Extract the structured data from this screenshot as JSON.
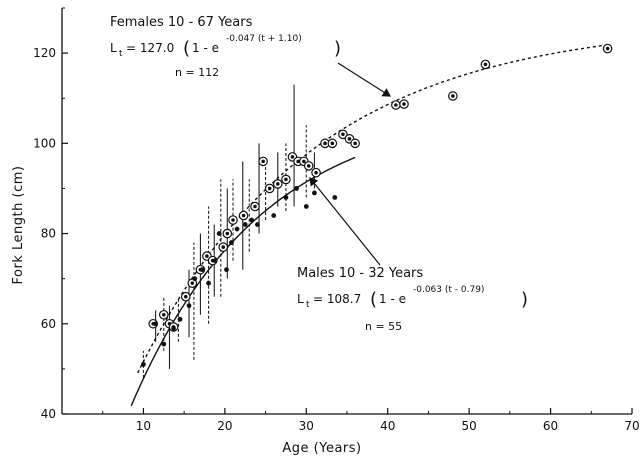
{
  "chart_data": {
    "type": "scatter",
    "xlabel": "Age (Years)",
    "ylabel": "Fork Length (cm)",
    "xlim": [
      0,
      70
    ],
    "ylim": [
      40,
      130
    ],
    "x_ticks": [
      "10",
      "20",
      "30",
      "40",
      "50",
      "60",
      "70"
    ],
    "y_ticks": [
      "40",
      "60",
      "80",
      "100",
      "120"
    ],
    "grid": false,
    "series": [
      {
        "name": "Females 10 - 67 Years",
        "equation_lhs": "L",
        "equation_sub": "t",
        "equation_head": "= 127.0",
        "equation_base": "1 - e",
        "equation_exp": "-0.047 (t + 1.10)",
        "n_label": "n = 112",
        "curve": {
          "Linf": 127.0,
          "k": 0.047,
          "t0": -1.1,
          "x_range": [
            9.3,
            67
          ]
        },
        "line_style": "dotted",
        "points": [
          {
            "x": 11.2,
            "y": 60.0
          },
          {
            "x": 12.5,
            "y": 62.0
          },
          {
            "x": 13.2,
            "y": 60.0
          },
          {
            "x": 13.7,
            "y": 59.3
          },
          {
            "x": 15.2,
            "y": 66.0
          },
          {
            "x": 16.0,
            "y": 69.0
          },
          {
            "x": 17.0,
            "y": 72.0
          },
          {
            "x": 17.8,
            "y": 75.0
          },
          {
            "x": 18.5,
            "y": 74.0
          },
          {
            "x": 19.8,
            "y": 77.0
          },
          {
            "x": 20.3,
            "y": 80.0
          },
          {
            "x": 21.0,
            "y": 83.0
          },
          {
            "x": 22.3,
            "y": 84.0
          },
          {
            "x": 23.7,
            "y": 86.0
          },
          {
            "x": 24.7,
            "y": 96.0
          },
          {
            "x": 25.5,
            "y": 90.0
          },
          {
            "x": 26.5,
            "y": 91.0
          },
          {
            "x": 27.5,
            "y": 92.0
          },
          {
            "x": 28.3,
            "y": 97.0
          },
          {
            "x": 29.0,
            "y": 96.0
          },
          {
            "x": 29.7,
            "y": 96.0
          },
          {
            "x": 30.3,
            "y": 95.0
          },
          {
            "x": 31.2,
            "y": 93.5
          },
          {
            "x": 32.3,
            "y": 100.0
          },
          {
            "x": 33.2,
            "y": 100.0
          },
          {
            "x": 34.5,
            "y": 102.0
          },
          {
            "x": 35.3,
            "y": 101.0
          },
          {
            "x": 36.0,
            "y": 100.0
          },
          {
            "x": 41.0,
            "y": 108.5
          },
          {
            "x": 42.0,
            "y": 108.7
          },
          {
            "x": 48.0,
            "y": 110.5
          },
          {
            "x": 52.0,
            "y": 117.5
          },
          {
            "x": 67.0,
            "y": 121.0
          }
        ]
      },
      {
        "name": "Males 10 - 32 Years",
        "equation_lhs": "L",
        "equation_sub": "t",
        "equation_head": "= 108.7",
        "equation_base": "1 - e",
        "equation_exp": "-0.063 (t - 0.79)",
        "n_label": "n = 55",
        "curve": {
          "Linf": 108.7,
          "k": 0.063,
          "t0": 0.79,
          "x_range": [
            8.5,
            36
          ]
        },
        "line_style": "solid",
        "points": [
          {
            "x": 10.0,
            "y": 51.0
          },
          {
            "x": 11.5,
            "y": 60.0
          },
          {
            "x": 12.5,
            "y": 55.5
          },
          {
            "x": 13.7,
            "y": 59.0
          },
          {
            "x": 14.5,
            "y": 61.0
          },
          {
            "x": 15.6,
            "y": 64.0
          },
          {
            "x": 16.3,
            "y": 70.0
          },
          {
            "x": 17.2,
            "y": 72.0
          },
          {
            "x": 18.0,
            "y": 69.0
          },
          {
            "x": 18.8,
            "y": 74.0
          },
          {
            "x": 19.3,
            "y": 80.0
          },
          {
            "x": 20.2,
            "y": 72.0
          },
          {
            "x": 20.8,
            "y": 78.0
          },
          {
            "x": 21.5,
            "y": 81.0
          },
          {
            "x": 22.5,
            "y": 82.0
          },
          {
            "x": 23.3,
            "y": 83.0
          },
          {
            "x": 24.0,
            "y": 82.0
          },
          {
            "x": 26.0,
            "y": 84.0
          },
          {
            "x": 27.5,
            "y": 88.0
          },
          {
            "x": 28.8,
            "y": 90.0
          },
          {
            "x": 30.0,
            "y": 86.0
          },
          {
            "x": 31.0,
            "y": 89.0
          },
          {
            "x": 33.5,
            "y": 88.0
          }
        ]
      }
    ],
    "error_bars": [
      {
        "x": 10.0,
        "lo": 48,
        "hi": 54
      },
      {
        "x": 11.5,
        "lo": 56,
        "hi": 63
      },
      {
        "x": 12.5,
        "lo": 54,
        "hi": 66
      },
      {
        "x": 13.2,
        "lo": 50,
        "hi": 64
      },
      {
        "x": 14.3,
        "lo": 56,
        "hi": 66
      },
      {
        "x": 15.6,
        "lo": 57,
        "hi": 72
      },
      {
        "x": 16.2,
        "lo": 52,
        "hi": 78
      },
      {
        "x": 17.0,
        "lo": 62,
        "hi": 80
      },
      {
        "x": 18.0,
        "lo": 60,
        "hi": 86
      },
      {
        "x": 18.7,
        "lo": 66,
        "hi": 82
      },
      {
        "x": 19.5,
        "lo": 66,
        "hi": 92
      },
      {
        "x": 20.3,
        "lo": 70,
        "hi": 90
      },
      {
        "x": 21.0,
        "lo": 74,
        "hi": 92
      },
      {
        "x": 22.2,
        "lo": 72,
        "hi": 96
      },
      {
        "x": 23.0,
        "lo": 76,
        "hi": 92
      },
      {
        "x": 24.2,
        "lo": 80,
        "hi": 100
      },
      {
        "x": 25.0,
        "lo": 83,
        "hi": 96
      },
      {
        "x": 26.5,
        "lo": 86,
        "hi": 98
      },
      {
        "x": 27.5,
        "lo": 85,
        "hi": 100
      },
      {
        "x": 28.5,
        "lo": 86,
        "hi": 113
      },
      {
        "x": 30.0,
        "lo": 88,
        "hi": 104
      },
      {
        "x": 31.0,
        "lo": 90,
        "hi": 98
      }
    ]
  }
}
